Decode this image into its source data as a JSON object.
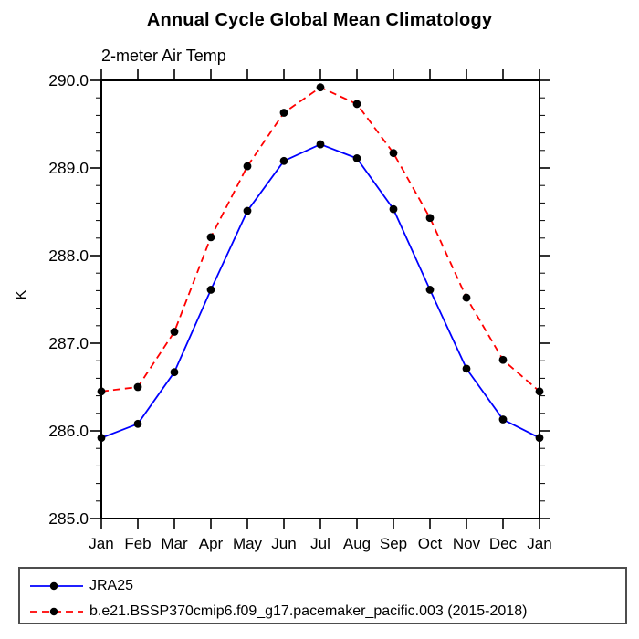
{
  "title": "Annual Cycle Global Mean Climatology",
  "subtitle": "2-meter Air Temp",
  "chart_data": {
    "type": "line",
    "title": "Annual Cycle Global Mean Climatology",
    "subtitle": "2-meter Air Temp",
    "categories": [
      "Jan",
      "Feb",
      "Mar",
      "Apr",
      "May",
      "Jun",
      "Jul",
      "Aug",
      "Sep",
      "Oct",
      "Nov",
      "Dec",
      "Jan"
    ],
    "series": [
      {
        "name": "JRA25",
        "color": "#0000ff",
        "line_style": "solid",
        "marker": "filled-circle",
        "marker_color": "#000000",
        "values": [
          285.92,
          286.08,
          286.67,
          287.61,
          288.51,
          289.08,
          289.27,
          289.11,
          288.53,
          287.61,
          286.71,
          286.13,
          285.92
        ]
      },
      {
        "name": "b.e21.BSSP370cmip6.f09_g17.pacemaker_pacific.003 (2015-2018)",
        "color": "#ff0000",
        "line_style": "dashed",
        "marker": "filled-circle",
        "marker_color": "#000000",
        "values": [
          286.45,
          286.5,
          287.13,
          288.21,
          289.02,
          289.63,
          289.92,
          289.73,
          289.17,
          288.43,
          287.52,
          286.81,
          286.45
        ]
      }
    ],
    "xlabel": "",
    "ylabel": "K",
    "ylim": [
      285.0,
      290.0
    ],
    "yticks": [
      "285.0",
      "286.0",
      "287.0",
      "288.0",
      "289.0",
      "290.0"
    ],
    "y_minor_interval": 0.2,
    "grid": false,
    "axis_color": "#000000",
    "legend_position": "bottom"
  }
}
